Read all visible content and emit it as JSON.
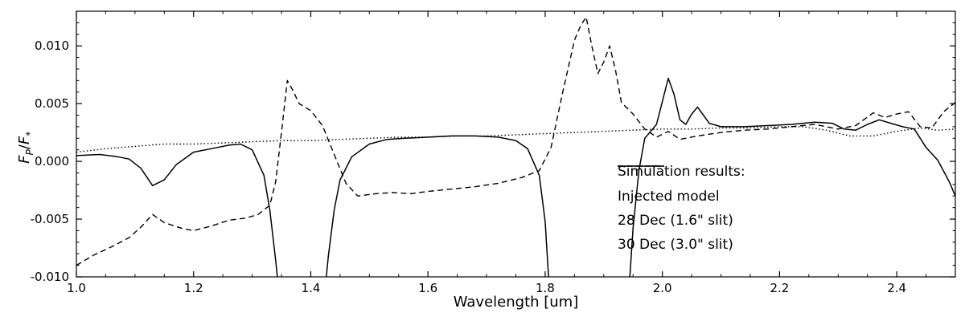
{
  "chart_data": {
    "type": "line",
    "xlabel": "Wavelength [um]",
    "ylabel": "F_P/F_*",
    "ylabel_parts": {
      "f1": "F",
      "sub1": "P",
      "slash": "/",
      "f2": "F",
      "sub2": "*"
    },
    "xlim": [
      1.0,
      2.5
    ],
    "ylim": [
      -0.01,
      0.013
    ],
    "xtick_values": [
      1.0,
      1.2,
      1.4,
      1.6,
      1.8,
      2.0,
      2.2,
      2.4
    ],
    "xtick_labels": [
      "1.0",
      "1.2",
      "1.4",
      "1.6",
      "1.8",
      "2.0",
      "2.2",
      "2.4"
    ],
    "ytick_values": [
      -0.01,
      -0.005,
      0.0,
      0.005,
      0.01
    ],
    "ytick_labels": [
      "-0.010",
      "-0.005",
      "0.000",
      "0.005",
      "0.010"
    ],
    "minor_x_step": 0.05,
    "minor_y_step": 0.001,
    "grid": false,
    "legend": {
      "title": "Simulation results:",
      "position": "lower right inside plot"
    },
    "line_color": "#000000",
    "series": [
      {
        "name": "Injected model",
        "style": "dotted",
        "points": [
          [
            1.0,
            0.0008
          ],
          [
            1.05,
            0.0011
          ],
          [
            1.1,
            0.0013
          ],
          [
            1.15,
            0.0015
          ],
          [
            1.2,
            0.0015
          ],
          [
            1.25,
            0.0016
          ],
          [
            1.3,
            0.0017
          ],
          [
            1.35,
            0.0018
          ],
          [
            1.4,
            0.0018
          ],
          [
            1.45,
            0.0019
          ],
          [
            1.5,
            0.002
          ],
          [
            1.55,
            0.0021
          ],
          [
            1.6,
            0.0021
          ],
          [
            1.65,
            0.0022
          ],
          [
            1.7,
            0.0022
          ],
          [
            1.75,
            0.0023
          ],
          [
            1.8,
            0.0024
          ],
          [
            1.85,
            0.0025
          ],
          [
            1.9,
            0.0026
          ],
          [
            1.95,
            0.0027
          ],
          [
            2.0,
            0.0028
          ],
          [
            2.05,
            0.0028
          ],
          [
            2.1,
            0.0029
          ],
          [
            2.15,
            0.0029
          ],
          [
            2.2,
            0.003
          ],
          [
            2.24,
            0.003
          ],
          [
            2.28,
            0.0027
          ],
          [
            2.32,
            0.0022
          ],
          [
            2.36,
            0.0022
          ],
          [
            2.4,
            0.0026
          ],
          [
            2.44,
            0.0029
          ],
          [
            2.47,
            0.0027
          ],
          [
            2.5,
            0.0028
          ]
        ]
      },
      {
        "name": "28 Dec (1.6\" slit)",
        "style": "dashed",
        "points": [
          [
            1.0,
            -0.009
          ],
          [
            1.03,
            -0.0081
          ],
          [
            1.06,
            -0.0074
          ],
          [
            1.09,
            -0.0066
          ],
          [
            1.11,
            -0.0057
          ],
          [
            1.13,
            -0.0046
          ],
          [
            1.15,
            -0.0053
          ],
          [
            1.18,
            -0.0058
          ],
          [
            1.2,
            -0.006
          ],
          [
            1.23,
            -0.0056
          ],
          [
            1.26,
            -0.0051
          ],
          [
            1.29,
            -0.0049
          ],
          [
            1.31,
            -0.0046
          ],
          [
            1.33,
            -0.0038
          ],
          [
            1.34,
            -0.0018
          ],
          [
            1.35,
            0.0025
          ],
          [
            1.36,
            0.007
          ],
          [
            1.37,
            0.0061
          ],
          [
            1.38,
            0.005
          ],
          [
            1.4,
            0.0044
          ],
          [
            1.42,
            0.0031
          ],
          [
            1.44,
            0.0006
          ],
          [
            1.46,
            -0.0019
          ],
          [
            1.48,
            -0.003
          ],
          [
            1.51,
            -0.0028
          ],
          [
            1.54,
            -0.0027
          ],
          [
            1.57,
            -0.0028
          ],
          [
            1.6,
            -0.0026
          ],
          [
            1.64,
            -0.0024
          ],
          [
            1.68,
            -0.0022
          ],
          [
            1.72,
            -0.0019
          ],
          [
            1.76,
            -0.0014
          ],
          [
            1.79,
            -0.0008
          ],
          [
            1.81,
            0.0012
          ],
          [
            1.83,
            0.006
          ],
          [
            1.85,
            0.0105
          ],
          [
            1.86,
            0.0117
          ],
          [
            1.87,
            0.0125
          ],
          [
            1.88,
            0.0099
          ],
          [
            1.89,
            0.0076
          ],
          [
            1.9,
            0.0086
          ],
          [
            1.91,
            0.01
          ],
          [
            1.92,
            0.0079
          ],
          [
            1.93,
            0.0051
          ],
          [
            1.95,
            0.0041
          ],
          [
            1.97,
            0.0028
          ],
          [
            1.99,
            0.0021
          ],
          [
            2.01,
            0.0026
          ],
          [
            2.03,
            0.0019
          ],
          [
            2.06,
            0.0022
          ],
          [
            2.1,
            0.0025
          ],
          [
            2.14,
            0.0027
          ],
          [
            2.18,
            0.0028
          ],
          [
            2.22,
            0.003
          ],
          [
            2.26,
            0.0032
          ],
          [
            2.3,
            0.0028
          ],
          [
            2.33,
            0.0031
          ],
          [
            2.36,
            0.0042
          ],
          [
            2.38,
            0.0038
          ],
          [
            2.4,
            0.0041
          ],
          [
            2.42,
            0.0043
          ],
          [
            2.44,
            0.003
          ],
          [
            2.46,
            0.0029
          ],
          [
            2.48,
            0.0043
          ],
          [
            2.5,
            0.0051
          ]
        ]
      },
      {
        "name": "30 Dec (3.0\" slit)",
        "style": "solid",
        "points": [
          [
            1.0,
            0.0005
          ],
          [
            1.04,
            0.0006
          ],
          [
            1.07,
            0.0004
          ],
          [
            1.09,
            0.0002
          ],
          [
            1.11,
            -0.0006
          ],
          [
            1.13,
            -0.0021
          ],
          [
            1.15,
            -0.0016
          ],
          [
            1.17,
            -0.0003
          ],
          [
            1.2,
            0.0008
          ],
          [
            1.23,
            0.0011
          ],
          [
            1.26,
            0.0014
          ],
          [
            1.28,
            0.0015
          ],
          [
            1.3,
            0.001
          ],
          [
            1.32,
            -0.0012
          ],
          [
            1.33,
            -0.0042
          ],
          [
            1.34,
            -0.0085
          ],
          [
            1.35,
            -0.0135
          ],
          [
            1.42,
            -0.0135
          ],
          [
            1.43,
            -0.0082
          ],
          [
            1.44,
            -0.0042
          ],
          [
            1.45,
            -0.0016
          ],
          [
            1.47,
            0.0004
          ],
          [
            1.5,
            0.0015
          ],
          [
            1.53,
            0.0019
          ],
          [
            1.56,
            0.002
          ],
          [
            1.6,
            0.0021
          ],
          [
            1.64,
            0.0022
          ],
          [
            1.68,
            0.0022
          ],
          [
            1.72,
            0.0021
          ],
          [
            1.75,
            0.0018
          ],
          [
            1.77,
            0.0011
          ],
          [
            1.79,
            -0.0012
          ],
          [
            1.8,
            -0.0052
          ],
          [
            1.81,
            -0.0135
          ],
          [
            1.94,
            -0.0135
          ],
          [
            1.95,
            -0.0058
          ],
          [
            1.96,
            -0.0008
          ],
          [
            1.97,
            0.002
          ],
          [
            1.98,
            0.0026
          ],
          [
            1.99,
            0.0032
          ],
          [
            2.0,
            0.0052
          ],
          [
            2.01,
            0.0072
          ],
          [
            2.02,
            0.0058
          ],
          [
            2.03,
            0.0036
          ],
          [
            2.04,
            0.0032
          ],
          [
            2.05,
            0.0041
          ],
          [
            2.06,
            0.0047
          ],
          [
            2.07,
            0.004
          ],
          [
            2.08,
            0.0033
          ],
          [
            2.1,
            0.003
          ],
          [
            2.14,
            0.003
          ],
          [
            2.18,
            0.0031
          ],
          [
            2.22,
            0.0032
          ],
          [
            2.26,
            0.0034
          ],
          [
            2.29,
            0.0033
          ],
          [
            2.31,
            0.0028
          ],
          [
            2.33,
            0.0027
          ],
          [
            2.35,
            0.0032
          ],
          [
            2.37,
            0.0036
          ],
          [
            2.39,
            0.0033
          ],
          [
            2.41,
            0.003
          ],
          [
            2.43,
            0.0028
          ],
          [
            2.45,
            0.0012
          ],
          [
            2.47,
            0.0001
          ],
          [
            2.49,
            -0.0018
          ],
          [
            2.5,
            -0.003
          ]
        ]
      }
    ]
  }
}
